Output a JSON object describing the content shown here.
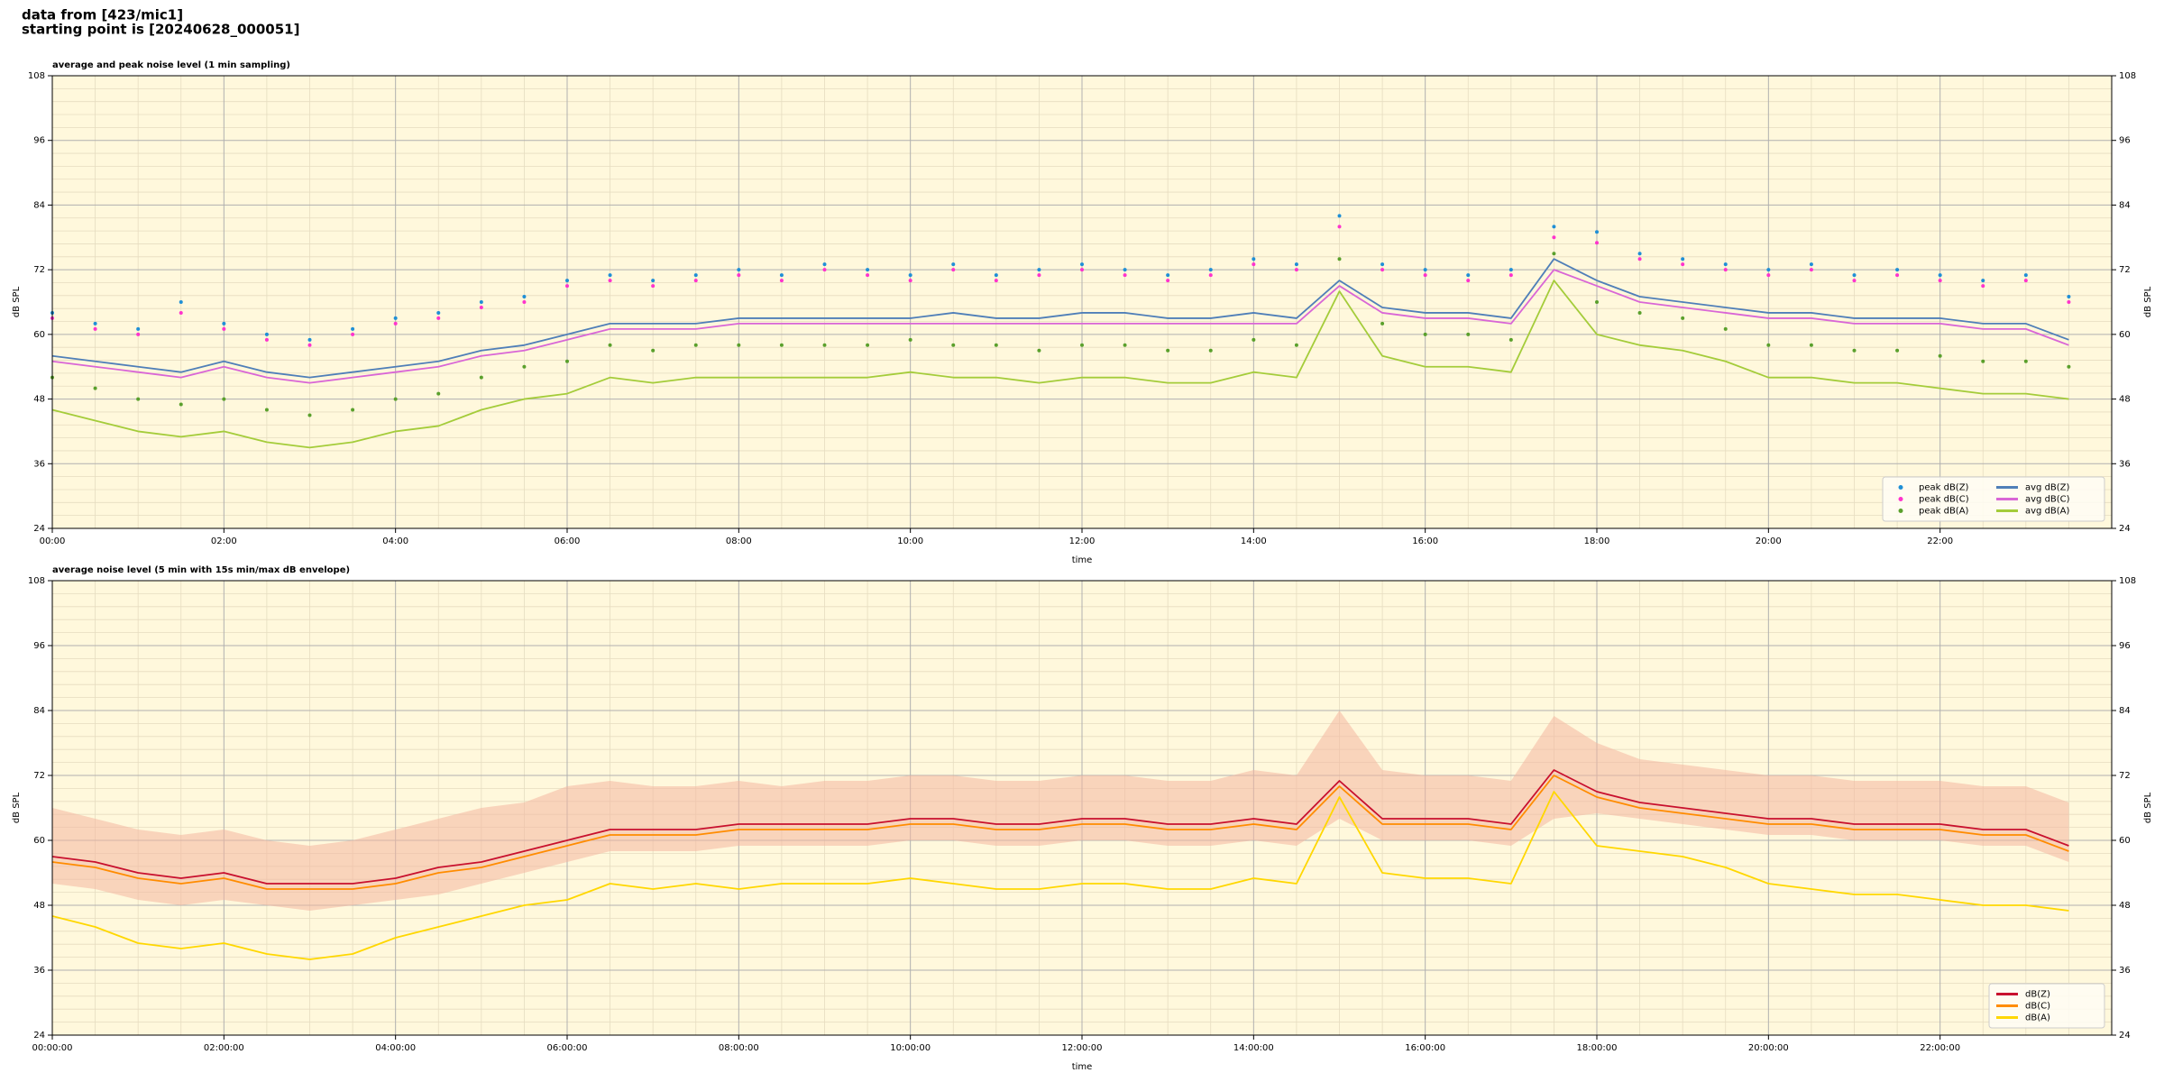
{
  "header_lines": [
    "data from [423/mic1]",
    "starting point is [20240628_000051]"
  ],
  "chart_data": [
    {
      "type": "line",
      "title": "average and peak noise level (1 min sampling)",
      "xlabel": "time",
      "ylabel": "dB SPL",
      "background": "#fff8dc",
      "grid": true,
      "minor_grid": true,
      "legend": "lower right",
      "legend_columns": 2,
      "x": [
        0,
        30,
        60,
        90,
        120,
        150,
        180,
        210,
        240,
        270,
        300,
        330,
        360,
        390,
        420,
        450,
        480,
        510,
        540,
        570,
        600,
        630,
        660,
        690,
        720,
        750,
        780,
        810,
        840,
        870,
        900,
        930,
        960,
        990,
        1020,
        1050,
        1080,
        1110,
        1140,
        1170,
        1200,
        1230,
        1260,
        1290,
        1320,
        1350,
        1380,
        1410
      ],
      "xlim": [
        0,
        1440
      ],
      "xticks": [
        {
          "value": 0,
          "label": "00:00"
        },
        {
          "value": 120,
          "label": "02:00"
        },
        {
          "value": 240,
          "label": "04:00"
        },
        {
          "value": 360,
          "label": "06:00"
        },
        {
          "value": 480,
          "label": "08:00"
        },
        {
          "value": 600,
          "label": "10:00"
        },
        {
          "value": 720,
          "label": "12:00"
        },
        {
          "value": 840,
          "label": "14:00"
        },
        {
          "value": 960,
          "label": "16:00"
        },
        {
          "value": 1080,
          "label": "18:00"
        },
        {
          "value": 1200,
          "label": "20:00"
        },
        {
          "value": 1320,
          "label": "22:00"
        }
      ],
      "ylim": [
        24,
        108
      ],
      "yticks": [
        24,
        36,
        48,
        60,
        72,
        84,
        96,
        108
      ],
      "series": [
        {
          "name": "peak dB(Z)",
          "style": "dots",
          "color": "#1f8fd6",
          "values": [
            64,
            62,
            61,
            66,
            62,
            60,
            59,
            61,
            63,
            64,
            66,
            67,
            70,
            71,
            70,
            71,
            72,
            71,
            73,
            72,
            71,
            73,
            71,
            72,
            73,
            72,
            71,
            72,
            74,
            73,
            82,
            73,
            72,
            71,
            72,
            80,
            79,
            75,
            74,
            73,
            72,
            73,
            71,
            72,
            71,
            70,
            71,
            67
          ]
        },
        {
          "name": "peak dB(C)",
          "style": "dots",
          "color": "#ff33cc",
          "values": [
            63,
            61,
            60,
            64,
            61,
            59,
            58,
            60,
            62,
            63,
            65,
            66,
            69,
            70,
            69,
            70,
            71,
            70,
            72,
            71,
            70,
            72,
            70,
            71,
            72,
            71,
            70,
            71,
            73,
            72,
            80,
            72,
            71,
            70,
            71,
            78,
            77,
            74,
            73,
            72,
            71,
            72,
            70,
            71,
            70,
            69,
            70,
            66
          ]
        },
        {
          "name": "peak dB(A)",
          "style": "dots",
          "color": "#5aa02c",
          "values": [
            52,
            50,
            48,
            47,
            48,
            46,
            45,
            46,
            48,
            49,
            52,
            54,
            55,
            58,
            57,
            58,
            58,
            58,
            58,
            58,
            59,
            58,
            58,
            57,
            58,
            58,
            57,
            57,
            59,
            58,
            74,
            62,
            60,
            60,
            59,
            75,
            66,
            64,
            63,
            61,
            58,
            58,
            57,
            57,
            56,
            55,
            55,
            54
          ]
        },
        {
          "name": "avg dB(Z)",
          "style": "line",
          "color": "#4f7fb8",
          "values": [
            56,
            55,
            54,
            53,
            55,
            53,
            52,
            53,
            54,
            55,
            57,
            58,
            60,
            62,
            62,
            62,
            63,
            63,
            63,
            63,
            63,
            64,
            63,
            63,
            64,
            64,
            63,
            63,
            64,
            63,
            70,
            65,
            64,
            64,
            63,
            74,
            70,
            67,
            66,
            65,
            64,
            64,
            63,
            63,
            63,
            62,
            62,
            59
          ]
        },
        {
          "name": "avg dB(C)",
          "style": "line",
          "color": "#d966d6",
          "values": [
            55,
            54,
            53,
            52,
            54,
            52,
            51,
            52,
            53,
            54,
            56,
            57,
            59,
            61,
            61,
            61,
            62,
            62,
            62,
            62,
            62,
            62,
            62,
            62,
            62,
            62,
            62,
            62,
            62,
            62,
            69,
            64,
            63,
            63,
            62,
            72,
            69,
            66,
            65,
            64,
            63,
            63,
            62,
            62,
            62,
            61,
            61,
            58
          ]
        },
        {
          "name": "avg dB(A)",
          "style": "line",
          "color": "#a4cc3a",
          "values": [
            46,
            44,
            42,
            41,
            42,
            40,
            39,
            40,
            42,
            43,
            46,
            48,
            49,
            52,
            51,
            52,
            52,
            52,
            52,
            52,
            53,
            52,
            52,
            51,
            52,
            52,
            51,
            51,
            53,
            52,
            68,
            56,
            54,
            54,
            53,
            70,
            60,
            58,
            57,
            55,
            52,
            52,
            51,
            51,
            50,
            49,
            49,
            48
          ]
        }
      ]
    },
    {
      "type": "line",
      "title": "average noise level (5 min with 15s min/max dB envelope)",
      "xlabel": "time",
      "ylabel": "dB SPL",
      "background": "#fff8dc",
      "grid": true,
      "minor_grid": true,
      "legend": "lower right",
      "legend_columns": 1,
      "x": [
        0,
        30,
        60,
        90,
        120,
        150,
        180,
        210,
        240,
        270,
        300,
        330,
        360,
        390,
        420,
        450,
        480,
        510,
        540,
        570,
        600,
        630,
        660,
        690,
        720,
        750,
        780,
        810,
        840,
        870,
        900,
        930,
        960,
        990,
        1020,
        1050,
        1080,
        1110,
        1140,
        1170,
        1200,
        1230,
        1260,
        1290,
        1320,
        1350,
        1380,
        1410
      ],
      "xlim": [
        0,
        1440
      ],
      "xticks": [
        {
          "value": 0,
          "label": "00:00:00"
        },
        {
          "value": 120,
          "label": "02:00:00"
        },
        {
          "value": 240,
          "label": "04:00:00"
        },
        {
          "value": 360,
          "label": "06:00:00"
        },
        {
          "value": 480,
          "label": "08:00:00"
        },
        {
          "value": 600,
          "label": "10:00:00"
        },
        {
          "value": 720,
          "label": "12:00:00"
        },
        {
          "value": 840,
          "label": "14:00:00"
        },
        {
          "value": 960,
          "label": "16:00:00"
        },
        {
          "value": 1080,
          "label": "18:00:00"
        },
        {
          "value": 1200,
          "label": "20:00:00"
        },
        {
          "value": 1320,
          "label": "22:00:00"
        }
      ],
      "ylim": [
        24,
        108
      ],
      "yticks": [
        24,
        36,
        48,
        60,
        72,
        84,
        96,
        108
      ],
      "envelope": {
        "color": "#f4b6a0",
        "max": [
          66,
          64,
          62,
          61,
          62,
          60,
          59,
          60,
          62,
          64,
          66,
          67,
          70,
          71,
          70,
          70,
          71,
          70,
          71,
          71,
          72,
          72,
          71,
          71,
          72,
          72,
          71,
          71,
          73,
          72,
          84,
          73,
          72,
          72,
          71,
          83,
          78,
          75,
          74,
          73,
          72,
          72,
          71,
          71,
          71,
          70,
          70,
          67
        ],
        "min": [
          52,
          51,
          49,
          48,
          49,
          48,
          47,
          48,
          49,
          50,
          52,
          54,
          56,
          58,
          58,
          58,
          59,
          59,
          59,
          59,
          60,
          60,
          59,
          59,
          60,
          60,
          59,
          59,
          60,
          59,
          64,
          60,
          60,
          60,
          59,
          64,
          65,
          64,
          63,
          62,
          61,
          61,
          60,
          60,
          60,
          59,
          59,
          56
        ]
      },
      "series": [
        {
          "name": "dB(Z)",
          "style": "line",
          "color": "#c8102e",
          "values": [
            57,
            56,
            54,
            53,
            54,
            52,
            52,
            52,
            53,
            55,
            56,
            58,
            60,
            62,
            62,
            62,
            63,
            63,
            63,
            63,
            64,
            64,
            63,
            63,
            64,
            64,
            63,
            63,
            64,
            63,
            71,
            64,
            64,
            64,
            63,
            73,
            69,
            67,
            66,
            65,
            64,
            64,
            63,
            63,
            63,
            62,
            62,
            59
          ]
        },
        {
          "name": "dB(C)",
          "style": "line",
          "color": "#ff8c00",
          "values": [
            56,
            55,
            53,
            52,
            53,
            51,
            51,
            51,
            52,
            54,
            55,
            57,
            59,
            61,
            61,
            61,
            62,
            62,
            62,
            62,
            63,
            63,
            62,
            62,
            63,
            63,
            62,
            62,
            63,
            62,
            70,
            63,
            63,
            63,
            62,
            72,
            68,
            66,
            65,
            64,
            63,
            63,
            62,
            62,
            62,
            61,
            61,
            58
          ]
        },
        {
          "name": "dB(A)",
          "style": "line",
          "color": "#ffd700",
          "values": [
            46,
            44,
            41,
            40,
            41,
            39,
            38,
            39,
            42,
            44,
            46,
            48,
            49,
            52,
            51,
            52,
            51,
            52,
            52,
            52,
            53,
            52,
            51,
            51,
            52,
            52,
            51,
            51,
            53,
            52,
            68,
            54,
            53,
            53,
            52,
            69,
            59,
            58,
            57,
            55,
            52,
            51,
            50,
            50,
            49,
            48,
            48,
            47
          ]
        }
      ]
    }
  ]
}
